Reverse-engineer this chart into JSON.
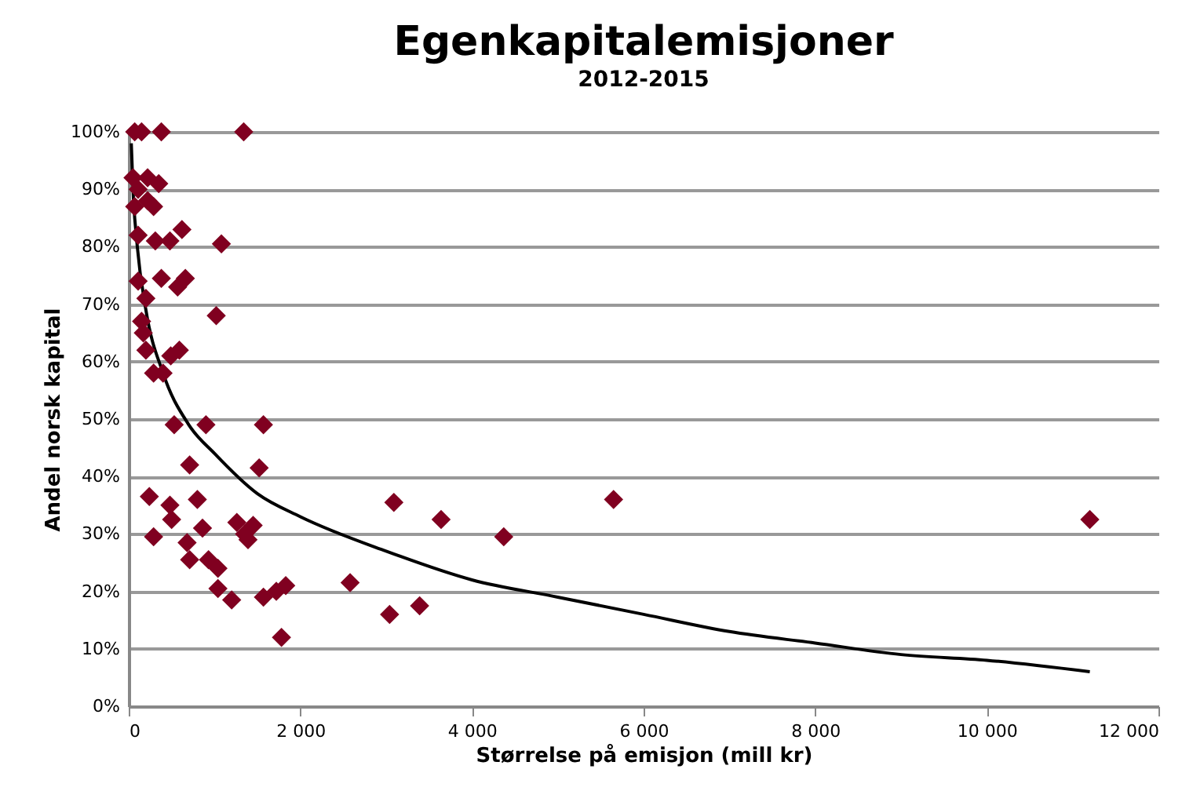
{
  "chart_data": {
    "type": "scatter",
    "title": "Egenkapitalemisjoner",
    "subtitle": "2012-2015",
    "xlabel": "Størrelse på emisjon (mill kr)",
    "ylabel": "Andel norsk kapital",
    "xlim": [
      0,
      12000
    ],
    "xticks": [
      0,
      {
        "value": 2000,
        "label": "2 000"
      },
      {
        "value": 4000,
        "label": "4 000"
      },
      {
        "value": 6000,
        "label": "6 000"
      },
      {
        "value": 8000,
        "label": "8 000"
      },
      {
        "value": 10000,
        "label": "10 000"
      },
      {
        "value": 12000,
        "label": "12 000"
      }
    ],
    "ylim": [
      0,
      100
    ],
    "yticks": [
      {
        "value": 0,
        "label": "0%"
      },
      {
        "value": 10,
        "label": "10%"
      },
      {
        "value": 20,
        "label": "20%"
      },
      {
        "value": 30,
        "label": "30%"
      },
      {
        "value": 40,
        "label": "40%"
      },
      {
        "value": 50,
        "label": "50%"
      },
      {
        "value": 60,
        "label": "60%"
      },
      {
        "value": 70,
        "label": "70%"
      },
      {
        "value": 80,
        "label": "80%"
      },
      {
        "value": 90,
        "label": "90%"
      },
      {
        "value": 100,
        "label": "100%"
      }
    ],
    "grid": "y",
    "marker": "diamond",
    "series": [
      {
        "color": "#800020",
        "x": [
          70,
          150,
          380,
          1340,
          50,
          220,
          350,
          110,
          220,
          70,
          290,
          110,
          620,
          310,
          480,
          1080,
          110,
          380,
          570,
          660,
          200,
          1020,
          150,
          170,
          200,
          490,
          590,
          290,
          400,
          530,
          900,
          1570,
          710,
          1520,
          240,
          480,
          800,
          500,
          290,
          680,
          860,
          1260,
          1350,
          1450,
          1390,
          710,
          930,
          1040,
          1040,
          1200,
          1570,
          1720,
          1830,
          1780,
          2580,
          3040,
          3390,
          3090,
          3640,
          4370,
          5650,
          11200
        ],
        "values": [
          100,
          100,
          100,
          100,
          92,
          92,
          91,
          90,
          88,
          87,
          87,
          82,
          83,
          81,
          81,
          80.5,
          74,
          74.5,
          73,
          74.5,
          71,
          68,
          67,
          65,
          62,
          61,
          62,
          58,
          58,
          49,
          49,
          49,
          42,
          41.5,
          36.5,
          35,
          36,
          32.5,
          29.5,
          28.5,
          31,
          32,
          30,
          31.5,
          29,
          25.5,
          25.5,
          24,
          20.5,
          18.5,
          19,
          20,
          21,
          12,
          21.5,
          16,
          17.5,
          35.5,
          32.5,
          29.5,
          36,
          32.5
        ]
      },
      {
        "type": "line",
        "marker": "none",
        "color": "#000000",
        "x": [
          30,
          50,
          100,
          200,
          400,
          700,
          1000,
          1500,
          2000,
          3000,
          4000,
          5000,
          6000,
          7000,
          8000,
          9000,
          10000,
          11200
        ],
        "values": [
          98,
          90,
          80,
          69,
          58,
          49,
          44,
          37,
          33,
          27,
          22,
          19,
          16,
          13,
          11,
          9,
          8,
          6
        ]
      }
    ]
  }
}
